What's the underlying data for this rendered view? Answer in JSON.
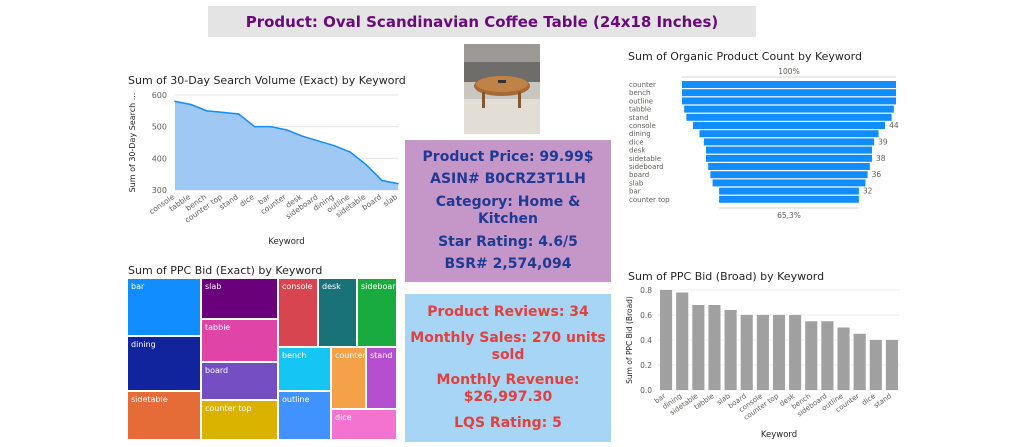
{
  "header": {
    "title": "Product: Oval Scandinavian Coffee Table (24x18 Inches)"
  },
  "photo": {
    "icon": "coffee-table-photo"
  },
  "product_card": {
    "price": "Product Price: 99.99$",
    "asin": "ASIN# B0CRZ3T1LH",
    "category": "Category: Home & Kitchen",
    "rating": "Star Rating: 4.6/5",
    "bsr": "BSR# 2,574,094"
  },
  "sales_card": {
    "reviews": "Product Reviews: 34",
    "monthly_sales": "Monthly Sales: 270 units sold",
    "monthly_revenue": "Monthly Revenue: $26,997.30",
    "lqs": "LQS Rating: 5"
  },
  "colors": {
    "title_text": "#6a0a7a",
    "purple_card": "#c597c8",
    "blue_card": "#a7d5f6",
    "area_fill": "#9fc9f4",
    "funnel_blue": "#118dff",
    "bar_gray": "#a0a0a0"
  },
  "chart_data": [
    {
      "id": "search-volume",
      "type": "area",
      "title": "Sum of 30-Day Search Volume (Exact) by Keyword",
      "xlabel": "Keyword",
      "ylabel": "Sum of 30-Day Search ...",
      "ylim": [
        300,
        600
      ],
      "yticks": [
        300,
        400,
        500,
        600
      ],
      "categories": [
        "console",
        "tabble",
        "bench",
        "counter top",
        "stand",
        "dice",
        "bar",
        "counter",
        "desk",
        "sideboard",
        "dining",
        "outline",
        "sidetable",
        "board",
        "slab"
      ],
      "values": [
        580,
        570,
        550,
        545,
        540,
        500,
        500,
        490,
        470,
        455,
        440,
        420,
        380,
        330,
        320
      ]
    },
    {
      "id": "organic-count",
      "type": "bar",
      "title": "Sum of Organic Product Count by Keyword",
      "top_label": "100%",
      "bottom_label": "65,3%",
      "categories": [
        "counter",
        "bench",
        "outline",
        "tabble",
        "stand",
        "console",
        "dining",
        "dice",
        "desk",
        "sidetable",
        "sideboard",
        "board",
        "slab",
        "bar",
        "counter top"
      ],
      "values": [
        49,
        49,
        49,
        48,
        47,
        44,
        41,
        39,
        38,
        38,
        37,
        36,
        35,
        32,
        32
      ],
      "data_labels": [
        {
          "category": "console",
          "text": "44"
        },
        {
          "category": "dice",
          "text": "39"
        },
        {
          "category": "sidetable",
          "text": "38"
        },
        {
          "category": "board",
          "text": "36"
        },
        {
          "category": "bar",
          "text": "32"
        }
      ]
    },
    {
      "id": "ppc-exact",
      "type": "heatmap",
      "title": "Sum of PPC Bid (Exact) by Keyword",
      "categories": [
        "bar",
        "dining",
        "sidetable",
        "slab",
        "tabble",
        "board",
        "counter top",
        "console",
        "desk",
        "sideboard",
        "bench",
        "counter",
        "stand",
        "outline",
        "dice"
      ]
    },
    {
      "id": "ppc-broad",
      "type": "bar",
      "title": "Sum of PPC Bid (Broad) by Keyword",
      "xlabel": "Keyword",
      "ylabel": "Sum of PPC Bid (Broad)",
      "ylim": [
        0,
        0.8
      ],
      "yticks": [
        "0.0",
        "0.2",
        "0.4",
        "0.6",
        "0.8"
      ],
      "categories": [
        "bar",
        "dining",
        "sidetable",
        "tabble",
        "slab",
        "board",
        "console",
        "counter top",
        "desk",
        "bench",
        "sideboard",
        "outline",
        "counter",
        "dice",
        "stand"
      ],
      "values": [
        0.8,
        0.78,
        0.68,
        0.68,
        0.64,
        0.6,
        0.6,
        0.6,
        0.6,
        0.55,
        0.55,
        0.5,
        0.45,
        0.4,
        0.4
      ]
    }
  ]
}
